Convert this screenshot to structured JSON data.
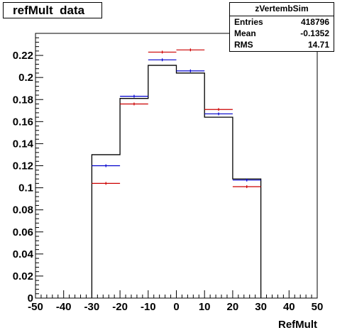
{
  "title": "refMult  data",
  "stats": {
    "name": "zVertembSim",
    "rows": [
      {
        "label": "Entries",
        "value": "418796"
      },
      {
        "label": "Mean",
        "value": "-0.1352"
      },
      {
        "label": "RMS",
        "value": "14.71"
      }
    ]
  },
  "chart_data": {
    "type": "bar",
    "xlabel": "RefMult",
    "ylabel": "",
    "xlim": [
      -50,
      50
    ],
    "ylim": [
      0,
      0.24
    ],
    "x_ticks": [
      "-50",
      "-40",
      "-30",
      "-20",
      "-10",
      "0",
      "10",
      "20",
      "30",
      "40",
      "50"
    ],
    "y_ticks": [
      "0",
      "0.02",
      "0.04",
      "0.06",
      "0.08",
      "0.1",
      "0.12",
      "0.14",
      "0.16",
      "0.18",
      "0.2",
      "0.22"
    ],
    "bin_edges": [
      -30,
      -20,
      -10,
      0,
      10,
      20,
      30
    ],
    "series": [
      {
        "style": "histogram",
        "color": "#000000",
        "values": [
          0.13,
          0.181,
          0.211,
          0.204,
          0.164,
          0.108
        ]
      },
      {
        "style": "markers",
        "color": "#0000cc",
        "x": [
          -25,
          -15,
          -5,
          5,
          15,
          25
        ],
        "values": [
          0.12,
          0.183,
          0.216,
          0.206,
          0.167,
          0.107
        ]
      },
      {
        "style": "markers",
        "color": "#cc0000",
        "x": [
          -25,
          -15,
          -5,
          5,
          15,
          25
        ],
        "values": [
          0.104,
          0.176,
          0.223,
          0.225,
          0.171,
          0.101
        ]
      }
    ]
  }
}
